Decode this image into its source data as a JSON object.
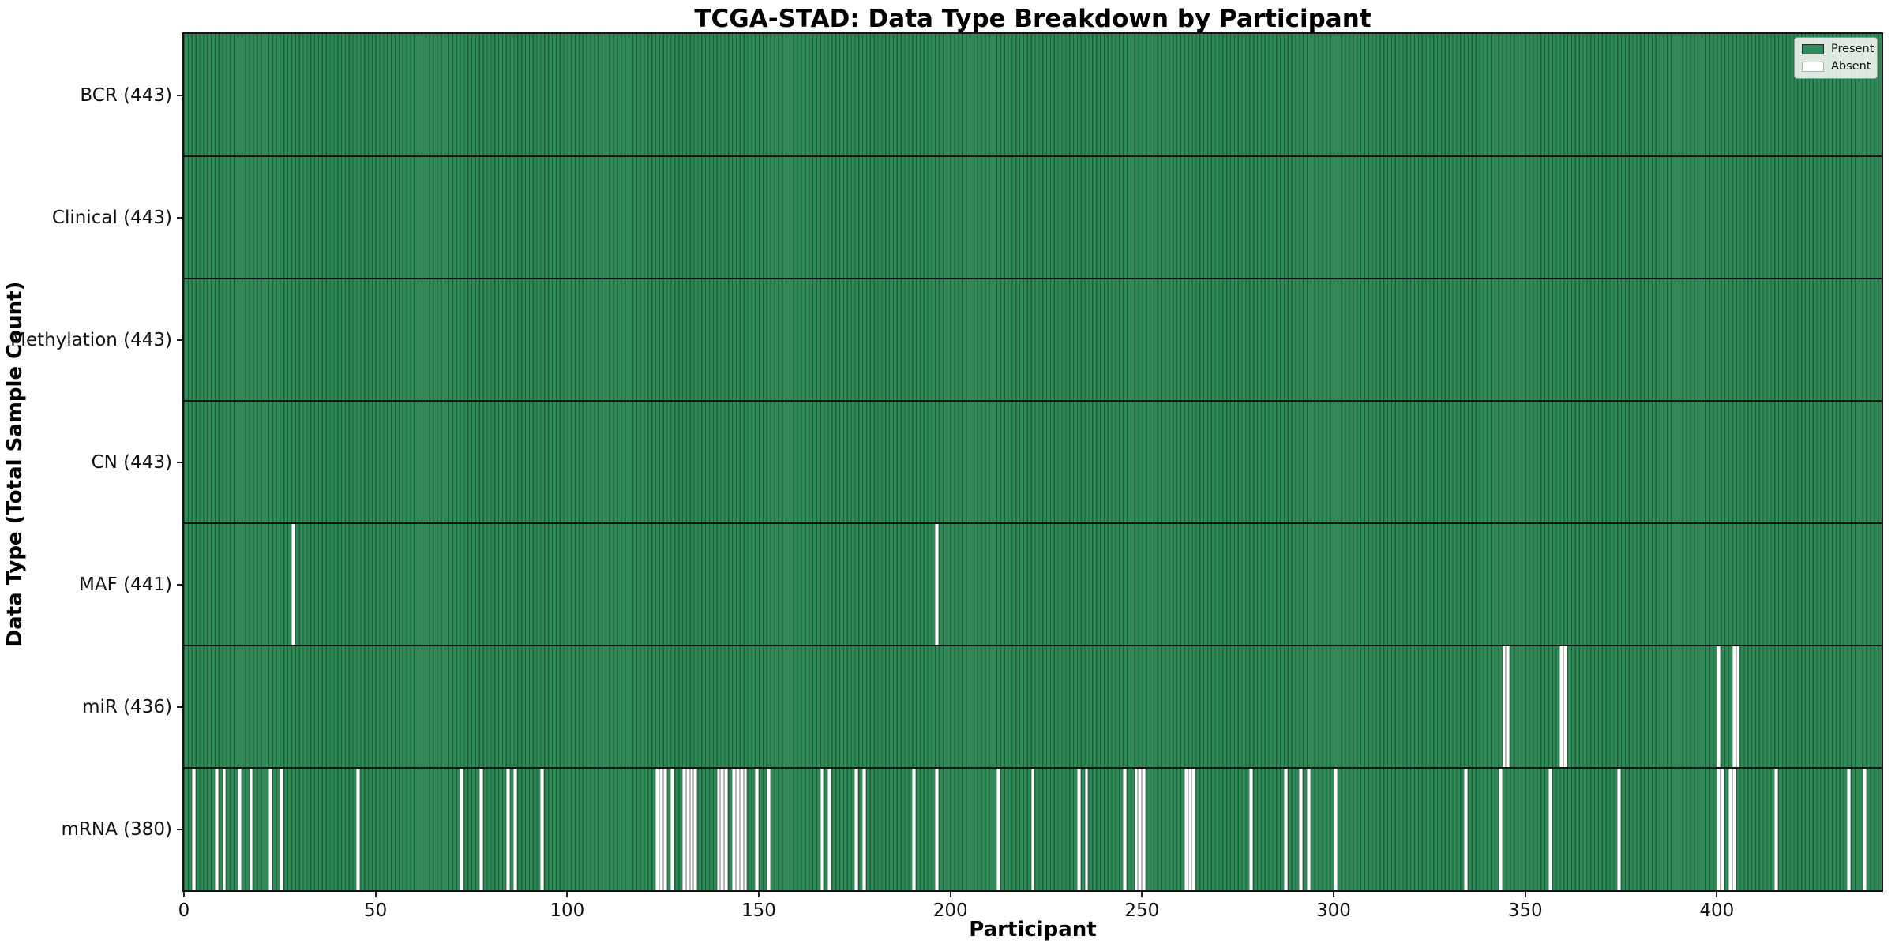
{
  "title": "TCGA-STAD: Data Type Breakdown by Participant",
  "xlabel": "Participant",
  "ylabel": "Data Type (Total Sample Count)",
  "legend": {
    "present_label": "Present",
    "absent_label": "Absent"
  },
  "colors": {
    "present": "#2e8b57",
    "present_edge": "#1e5c3a",
    "absent": "#ffffff",
    "absent_edge": "#b9b9b9",
    "frame": "#141414"
  },
  "chart_data": {
    "type": "heatmap",
    "title": "TCGA-STAD: Data Type Breakdown by Participant",
    "xlabel": "Participant",
    "ylabel": "Data Type (Total Sample Count)",
    "legend": [
      "Present",
      "Absent"
    ],
    "legend_position": "upper right",
    "n_participants": 443,
    "x_ticks": [
      0,
      50,
      100,
      150,
      200,
      250,
      300,
      350,
      400
    ],
    "cell_states": [
      "present",
      "absent"
    ],
    "rows": [
      {
        "label": "BCR (443)",
        "data_type": "BCR",
        "total": 443,
        "absent_participants": []
      },
      {
        "label": "Clinical (443)",
        "data_type": "Clinical",
        "total": 443,
        "absent_participants": []
      },
      {
        "label": "Methylation (443)",
        "data_type": "Methylation",
        "total": 443,
        "absent_participants": []
      },
      {
        "label": "CN (443)",
        "data_type": "CN",
        "total": 443,
        "absent_participants": []
      },
      {
        "label": "MAF (441)",
        "data_type": "MAF",
        "total": 441,
        "absent_participants": [
          28,
          196
        ]
      },
      {
        "label": "miR (436)",
        "data_type": "miR",
        "total": 436,
        "absent_participants": [
          344,
          345,
          359,
          360,
          400,
          404,
          405
        ]
      },
      {
        "label": "mRNA (380)",
        "data_type": "mRNA",
        "total": 380,
        "absent_participants": [
          2,
          8,
          10,
          14,
          17,
          22,
          25,
          45,
          72,
          77,
          84,
          86,
          93,
          123,
          124,
          125,
          127,
          130,
          131,
          132,
          133,
          139,
          140,
          141,
          143,
          144,
          145,
          146,
          149,
          152,
          166,
          168,
          175,
          177,
          190,
          196,
          212,
          221,
          233,
          235,
          245,
          248,
          249,
          250,
          261,
          262,
          263,
          278,
          287,
          291,
          293,
          300,
          334,
          343,
          356,
          374,
          400,
          401,
          403,
          404,
          415,
          434,
          438
        ]
      }
    ]
  }
}
